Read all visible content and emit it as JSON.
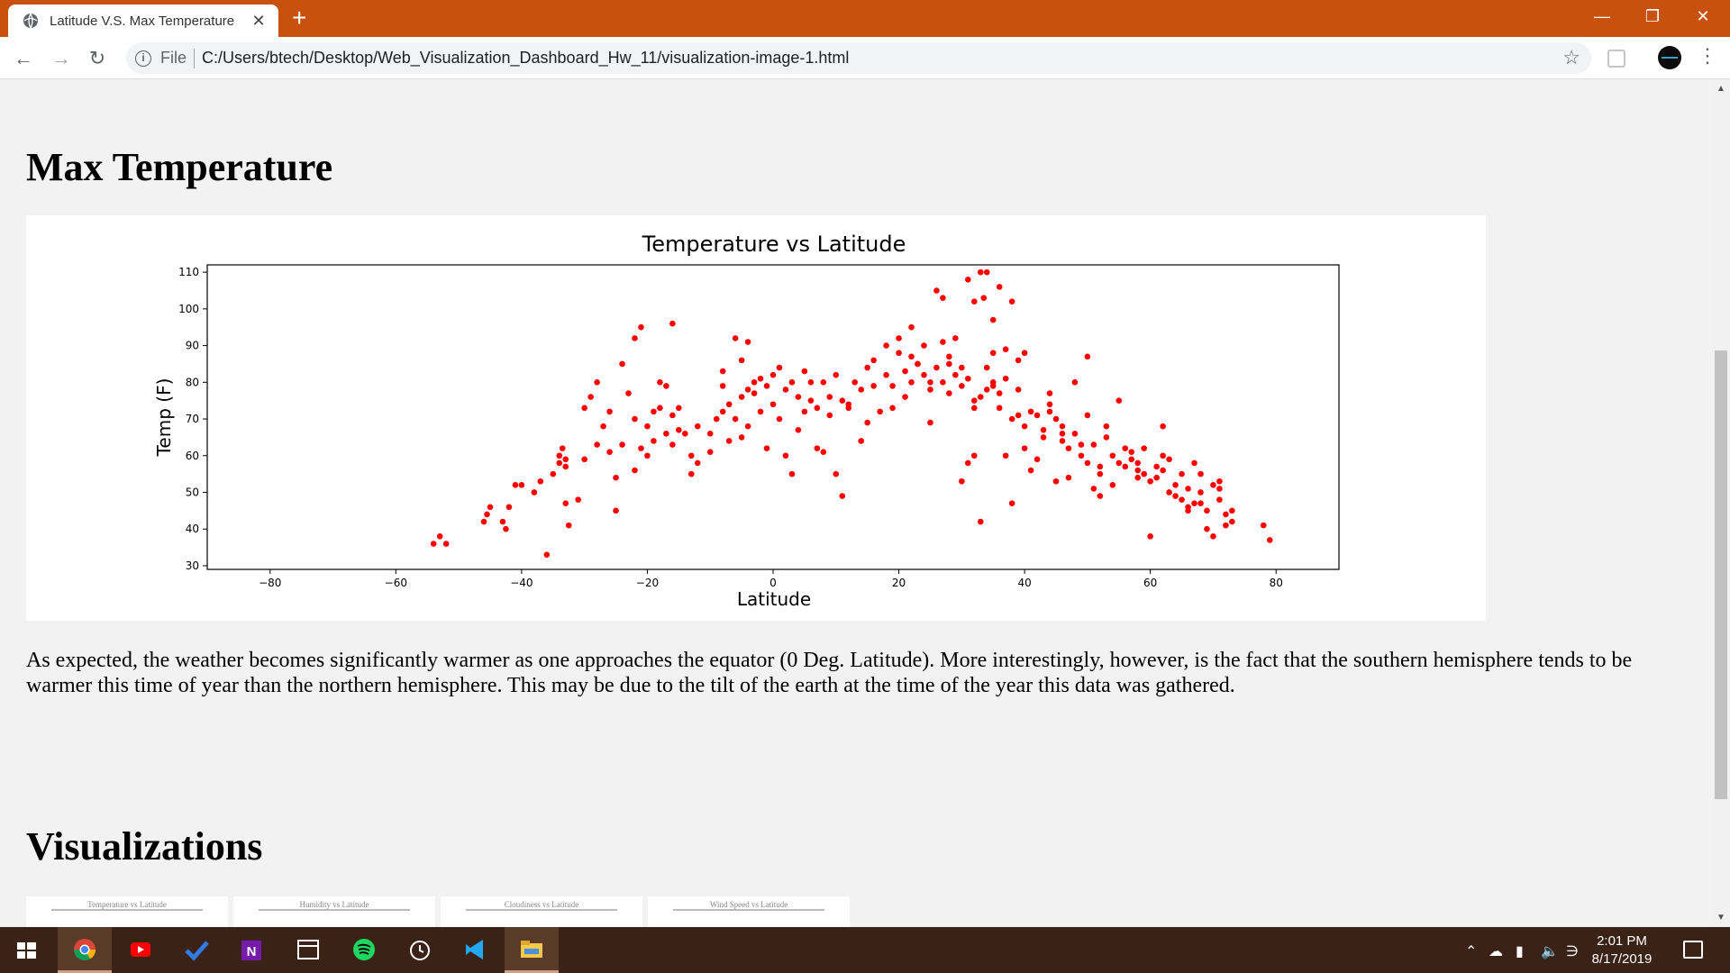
{
  "browser": {
    "tab_title": "Latitude V.S. Max Temperature",
    "close_glyph": "✕",
    "new_tab_glyph": "+",
    "url_scheme_label": "File",
    "url": "C:/Users/btech/Desktop/Web_Visualization_Dashboard_Hw_11/visualization-image-1.html",
    "window_controls": [
      "—",
      "❐",
      "✕"
    ]
  },
  "page": {
    "heading": "Max Temperature",
    "description": "As expected, the weather becomes significantly warmer as one approaches the equator (0 Deg. Latitude). More interestingly, however, is the fact that the southern hemisphere tends to be warmer this time of year than the northern hemisphere. This may be due to the tilt of the earth at the time of the year this data was gathered.",
    "section_heading": "Visualizations",
    "thumbnails": [
      "Temperature vs Latitude",
      "Humidity vs Latitude",
      "Cloudiness vs Latitude",
      "Wind Speed vs Latitude"
    ]
  },
  "chart_data": {
    "type": "scatter",
    "title": "Temperature vs Latitude",
    "xlabel": "Latitude",
    "ylabel": "Temp (F)",
    "xlim": [
      -90,
      90
    ],
    "ylim": [
      29,
      112
    ],
    "xticks": [
      -80,
      -60,
      -40,
      -20,
      0,
      20,
      40,
      60,
      80
    ],
    "yticks": [
      30,
      40,
      50,
      60,
      70,
      80,
      90,
      100,
      110
    ],
    "marker_color": "#ff0000",
    "grid": false,
    "points": [
      [
        -54,
        36
      ],
      [
        -53,
        38
      ],
      [
        -52,
        36
      ],
      [
        -46,
        42
      ],
      [
        -45.5,
        44
      ],
      [
        -45,
        46
      ],
      [
        -43,
        42
      ],
      [
        -42.5,
        40
      ],
      [
        -42,
        46
      ],
      [
        -41,
        52
      ],
      [
        -40,
        52
      ],
      [
        -38,
        50
      ],
      [
        -37,
        53
      ],
      [
        -36,
        33
      ],
      [
        -35,
        55
      ],
      [
        -34,
        58
      ],
      [
        -34,
        60
      ],
      [
        -33.5,
        62
      ],
      [
        -33,
        57
      ],
      [
        -33,
        47
      ],
      [
        -32.5,
        41
      ],
      [
        -31,
        48
      ],
      [
        -30,
        73
      ],
      [
        -28,
        63
      ],
      [
        -27,
        68
      ],
      [
        -26,
        61
      ],
      [
        -25,
        45
      ],
      [
        -24,
        85
      ],
      [
        -23,
        77
      ],
      [
        -22,
        70
      ],
      [
        -21,
        62
      ],
      [
        -20,
        68
      ],
      [
        -19,
        72
      ],
      [
        -18,
        80
      ],
      [
        -17,
        79
      ],
      [
        -16,
        71
      ],
      [
        -15,
        73
      ],
      [
        -14,
        66
      ],
      [
        -13,
        60
      ],
      [
        -12,
        68
      ],
      [
        -10,
        66
      ],
      [
        -9,
        70
      ],
      [
        -8,
        72
      ],
      [
        -7,
        74
      ],
      [
        -6,
        70
      ],
      [
        -5,
        76
      ],
      [
        -4,
        78
      ],
      [
        -3,
        80
      ],
      [
        -2,
        81
      ],
      [
        -1,
        79
      ],
      [
        0,
        82
      ],
      [
        0,
        74
      ],
      [
        1,
        70
      ],
      [
        2,
        78
      ],
      [
        3,
        80
      ],
      [
        4,
        76
      ],
      [
        5,
        83
      ],
      [
        6,
        75
      ],
      [
        7,
        73
      ],
      [
        8,
        80
      ],
      [
        9,
        76
      ],
      [
        10,
        82
      ],
      [
        11,
        75
      ],
      [
        12,
        74
      ],
      [
        13,
        80
      ],
      [
        14,
        78
      ],
      [
        15,
        84
      ],
      [
        16,
        86
      ],
      [
        18,
        82
      ],
      [
        19,
        79
      ],
      [
        20,
        88
      ],
      [
        21,
        83
      ],
      [
        22,
        80
      ],
      [
        23,
        85
      ],
      [
        24,
        82
      ],
      [
        25,
        78
      ],
      [
        26,
        84
      ],
      [
        27,
        80
      ],
      [
        28,
        77
      ],
      [
        29,
        82
      ],
      [
        30,
        79
      ],
      [
        31,
        81
      ],
      [
        32,
        75
      ],
      [
        33,
        76
      ],
      [
        34,
        78
      ],
      [
        35,
        80
      ],
      [
        36,
        73
      ],
      [
        37,
        81
      ],
      [
        38,
        70
      ],
      [
        39,
        78
      ],
      [
        40,
        68
      ],
      [
        41,
        72
      ],
      [
        42,
        71
      ],
      [
        43,
        67
      ],
      [
        44,
        74
      ],
      [
        45,
        70
      ],
      [
        46,
        64
      ],
      [
        47,
        62
      ],
      [
        48,
        66
      ],
      [
        49,
        60
      ],
      [
        50,
        58
      ],
      [
        51,
        63
      ],
      [
        52,
        55
      ],
      [
        53,
        65
      ],
      [
        54,
        60
      ],
      [
        55,
        58
      ],
      [
        56,
        57
      ],
      [
        57,
        61
      ],
      [
        58,
        56
      ],
      [
        59,
        55
      ],
      [
        60,
        53
      ],
      [
        61,
        54
      ],
      [
        62,
        56
      ],
      [
        63,
        50
      ],
      [
        64,
        52
      ],
      [
        65,
        48
      ],
      [
        66,
        46
      ],
      [
        67,
        47
      ],
      [
        68,
        50
      ],
      [
        69,
        45
      ],
      [
        70,
        52
      ],
      [
        71,
        48
      ],
      [
        72,
        44
      ],
      [
        73,
        42
      ],
      [
        -29,
        76
      ],
      [
        -28,
        80
      ],
      [
        -26,
        72
      ],
      [
        -24,
        63
      ],
      [
        -20,
        60
      ],
      [
        -18,
        73
      ],
      [
        -16,
        63
      ],
      [
        -15,
        67
      ],
      [
        -12,
        58
      ],
      [
        -10,
        61
      ],
      [
        -8,
        83
      ],
      [
        -7,
        64
      ],
      [
        -5,
        65
      ],
      [
        -4,
        68
      ],
      [
        -2,
        72
      ],
      [
        -1,
        62
      ],
      [
        1,
        84
      ],
      [
        2,
        60
      ],
      [
        3,
        55
      ],
      [
        6,
        80
      ],
      [
        7,
        62
      ],
      [
        9,
        71
      ],
      [
        10,
        55
      ],
      [
        11,
        49
      ],
      [
        12,
        73
      ],
      [
        14,
        64
      ],
      [
        16,
        79
      ],
      [
        17,
        72
      ],
      [
        18,
        90
      ],
      [
        19,
        73
      ],
      [
        21,
        76
      ],
      [
        22,
        95
      ],
      [
        24,
        90
      ],
      [
        25,
        69
      ],
      [
        27,
        91
      ],
      [
        28,
        87
      ],
      [
        29,
        92
      ],
      [
        30,
        53
      ],
      [
        31,
        58
      ],
      [
        32,
        60
      ],
      [
        33,
        42
      ],
      [
        34,
        84
      ],
      [
        35,
        88
      ],
      [
        36,
        77
      ],
      [
        37,
        60
      ],
      [
        38,
        47
      ],
      [
        39,
        71
      ],
      [
        40,
        62
      ],
      [
        41,
        56
      ],
      [
        42,
        59
      ],
      [
        43,
        65
      ],
      [
        44,
        77
      ],
      [
        45,
        53
      ],
      [
        46,
        66
      ],
      [
        47,
        54
      ],
      [
        48,
        80
      ],
      [
        49,
        63
      ],
      [
        50,
        71
      ],
      [
        51,
        51
      ],
      [
        52,
        49
      ],
      [
        53,
        68
      ],
      [
        54,
        52
      ],
      [
        55,
        75
      ],
      [
        56,
        62
      ],
      [
        57,
        59
      ],
      [
        58,
        58
      ],
      [
        59,
        62
      ],
      [
        60,
        38
      ],
      [
        61,
        57
      ],
      [
        62,
        68
      ],
      [
        63,
        59
      ],
      [
        64,
        49
      ],
      [
        65,
        55
      ],
      [
        66,
        51
      ],
      [
        67,
        58
      ],
      [
        68,
        55
      ],
      [
        69,
        40
      ],
      [
        70,
        38
      ],
      [
        71,
        53
      ],
      [
        72,
        41
      ],
      [
        73,
        45
      ],
      [
        78,
        41
      ],
      [
        79,
        37
      ],
      [
        -22,
        92
      ],
      [
        -21,
        95
      ],
      [
        -16,
        96
      ],
      [
        -8,
        79
      ],
      [
        -6,
        92
      ],
      [
        -5,
        86
      ],
      [
        -4,
        91
      ],
      [
        20,
        92
      ],
      [
        22,
        87
      ],
      [
        25,
        80
      ],
      [
        26,
        105
      ],
      [
        27,
        103
      ],
      [
        28,
        85
      ],
      [
        31,
        108
      ],
      [
        32,
        102
      ],
      [
        33,
        110
      ],
      [
        33.5,
        103
      ],
      [
        34,
        110
      ],
      [
        35,
        97
      ],
      [
        36,
        106
      ],
      [
        37,
        89
      ],
      [
        38,
        102
      ],
      [
        39,
        86
      ],
      [
        40,
        88
      ],
      [
        50,
        87
      ],
      [
        -33,
        59
      ],
      [
        -30,
        59
      ],
      [
        -25,
        54
      ],
      [
        -22,
        56
      ],
      [
        -19,
        64
      ],
      [
        -17,
        66
      ],
      [
        -13,
        55
      ],
      [
        -3,
        77
      ],
      [
        4,
        67
      ],
      [
        5,
        72
      ],
      [
        8,
        61
      ],
      [
        15,
        69
      ],
      [
        23,
        85
      ],
      [
        30,
        84
      ],
      [
        32,
        73
      ],
      [
        35,
        79
      ],
      [
        44,
        72
      ],
      [
        46,
        68
      ],
      [
        52,
        57
      ],
      [
        58,
        54
      ],
      [
        62,
        60
      ],
      [
        66,
        45
      ],
      [
        68,
        47
      ],
      [
        71,
        51
      ]
    ]
  },
  "taskbar": {
    "clock_time": "2:01 PM",
    "clock_date": "8/17/2019"
  }
}
